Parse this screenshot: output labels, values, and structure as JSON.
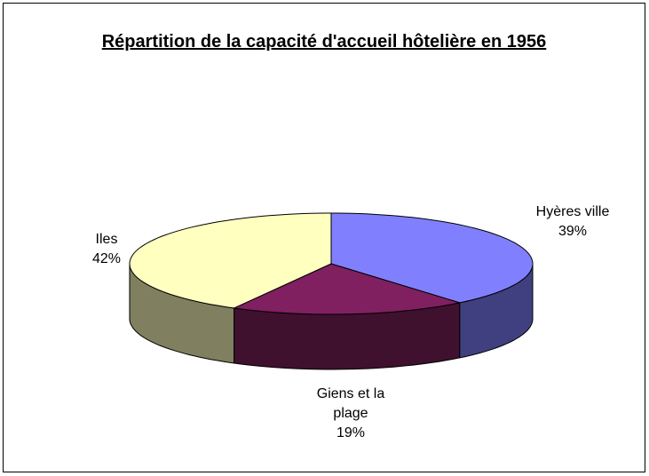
{
  "chart_data": {
    "type": "pie3d",
    "title": "Répartition de la capacité d'accueil hôtelière en 1956",
    "categories": [
      "Hyères ville",
      "Giens et la plage",
      "Iles"
    ],
    "values": [
      39,
      19,
      42
    ],
    "value_labels": [
      "39%",
      "19%",
      "42%"
    ],
    "colors": [
      "#8080ff",
      "#802060",
      "#ffffc0"
    ],
    "side_colors": [
      "#404080",
      "#40102f",
      "#808060"
    ]
  }
}
